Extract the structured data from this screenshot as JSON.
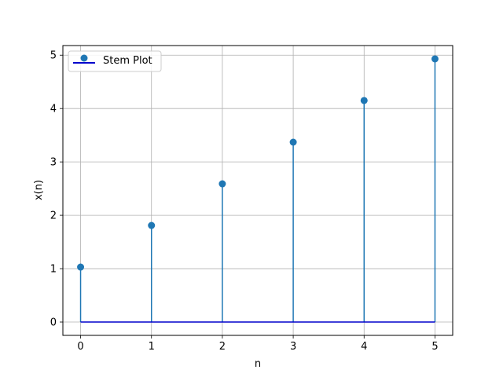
{
  "chart_data": {
    "type": "stem",
    "xlabel": "n",
    "ylabel": "x(n)",
    "x": [
      0,
      1,
      2,
      3,
      4,
      5
    ],
    "series": [
      {
        "name": "Stem Plot",
        "values": [
          1.03,
          1.81,
          2.59,
          3.37,
          4.15,
          4.93
        ],
        "color": "#1f77b4"
      }
    ],
    "baseline": {
      "value": 0,
      "color": "#0000cc"
    },
    "xticks": [
      0,
      1,
      2,
      3,
      4,
      5
    ],
    "yticks": [
      0,
      1,
      2,
      3,
      4,
      5
    ],
    "xlim": [
      -0.25,
      5.25
    ],
    "ylim": [
      -0.25,
      5.18
    ],
    "grid": true,
    "legend": {
      "position": "top-left"
    }
  }
}
